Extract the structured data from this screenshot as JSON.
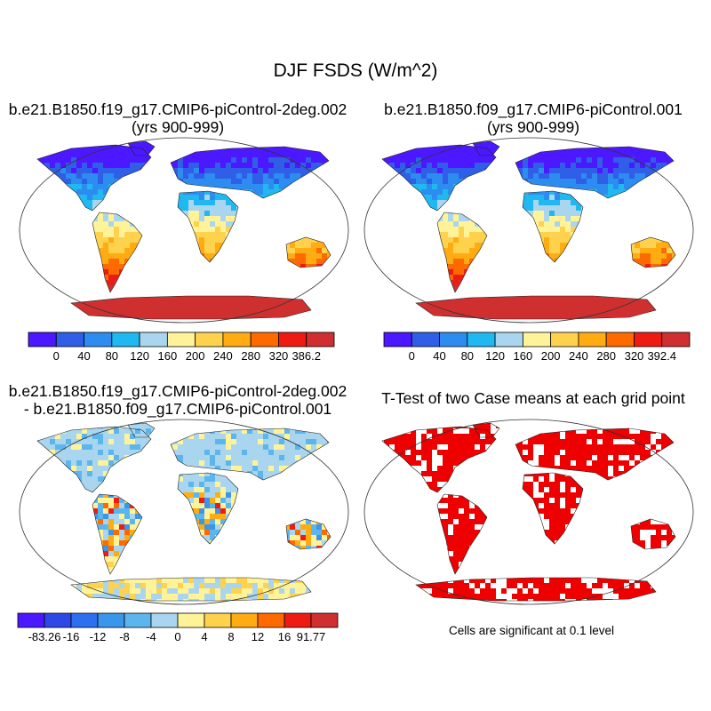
{
  "title": "DJF FSDS (W/m^2)",
  "panels": {
    "case1": {
      "title_line1": "b.e21.B1850.f19_g17.CMIP6-piControl-2deg.002",
      "title_line2": "(yrs 900-999)",
      "colorbar": {
        "colors": [
          "#4b18ff",
          "#2e5fe6",
          "#2c8cf0",
          "#1fb8f0",
          "#a9d6ee",
          "#fff39a",
          "#ffd24d",
          "#ffac12",
          "#ff6a00",
          "#ee1b12",
          "#cf2f2f"
        ],
        "labels": [
          "0",
          "40",
          "80",
          "120",
          "160",
          "200",
          "240",
          "280",
          "320",
          "386.2"
        ]
      }
    },
    "case2": {
      "title_line1": "b.e21.B1850.f09_g17.CMIP6-piControl.001",
      "title_line2": "(yrs 900-999)",
      "colorbar": {
        "colors": [
          "#4b18ff",
          "#2e5fe6",
          "#2c8cf0",
          "#1fb8f0",
          "#a9d6ee",
          "#fff39a",
          "#ffd24d",
          "#ffac12",
          "#ff6a00",
          "#ee1b12",
          "#cf2f2f"
        ],
        "labels": [
          "0",
          "40",
          "80",
          "120",
          "160",
          "200",
          "240",
          "280",
          "320",
          "392.4"
        ]
      }
    },
    "diff": {
      "title_line1": "b.e21.B1850.f19_g17.CMIP6-piControl-2deg.002",
      "title_line2": "- b.e21.B1850.f09_g17.CMIP6-piControl.001",
      "colorbar": {
        "colors": [
          "#4b18ff",
          "#2e48e8",
          "#2c6ff0",
          "#3a96ea",
          "#5cb6ee",
          "#a9d6ee",
          "#fff39a",
          "#ffd24d",
          "#ffac12",
          "#ff6a00",
          "#ee1b12",
          "#cf2f2f"
        ],
        "labels": [
          "-83.26",
          "-16",
          "-12",
          "-8",
          "-4",
          "0",
          "4",
          "8",
          "12",
          "16",
          "91.77"
        ]
      }
    },
    "ttest": {
      "title": "T-Test of two Case means at each grid point",
      "note": "Cells are significant at 0.1 level",
      "color": "#ee0000"
    }
  }
}
